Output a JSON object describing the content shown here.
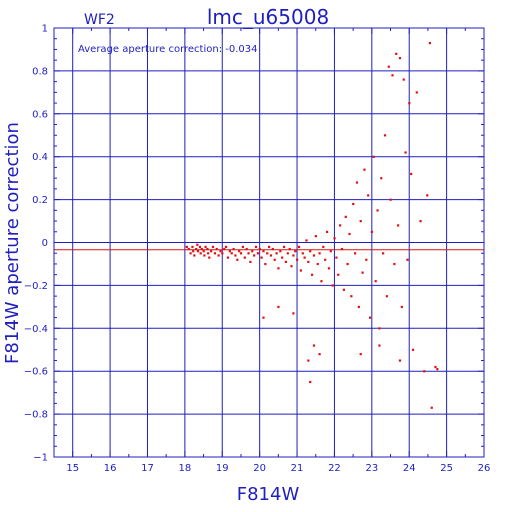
{
  "chart_data": {
    "type": "scatter",
    "title": "lmc_u65008",
    "chip_label": "WF2",
    "annotation": "Average aperture correction: -0.034",
    "xlabel": "F814W",
    "ylabel": "F814W aperture correction",
    "xlim": [
      14.5,
      26
    ],
    "ylim": [
      -1,
      1
    ],
    "xticks": [
      15,
      16,
      17,
      18,
      19,
      20,
      21,
      22,
      23,
      24,
      25,
      26
    ],
    "yticks": [
      -1,
      -0.8,
      -0.6,
      -0.4,
      -0.2,
      0,
      0.2,
      0.4,
      0.6,
      0.8,
      1
    ],
    "ytick_labels": [
      "−1",
      "−0.8",
      "−0.6",
      "−0.4",
      "−0.2",
      "0",
      "0.2",
      "0.4",
      "0.6",
      "0.8",
      "1"
    ],
    "grid": true,
    "average_line_y": -0.034,
    "zero_line_y": 0,
    "point_color": "#e01010",
    "axis_color": "#1f1fbf",
    "points": [
      [
        18.05,
        -0.02
      ],
      [
        18.1,
        -0.03
      ],
      [
        18.15,
        -0.05
      ],
      [
        18.2,
        -0.02
      ],
      [
        18.22,
        -0.04
      ],
      [
        18.25,
        -0.06
      ],
      [
        18.3,
        -0.03
      ],
      [
        18.33,
        -0.01
      ],
      [
        18.35,
        -0.04
      ],
      [
        18.4,
        -0.02
      ],
      [
        18.42,
        -0.05
      ],
      [
        18.45,
        -0.03
      ],
      [
        18.5,
        -0.04
      ],
      [
        18.52,
        -0.06
      ],
      [
        18.55,
        -0.02
      ],
      [
        18.6,
        -0.03
      ],
      [
        18.62,
        -0.05
      ],
      [
        18.65,
        -0.07
      ],
      [
        18.7,
        -0.04
      ],
      [
        18.75,
        -0.02
      ],
      [
        18.8,
        -0.05
      ],
      [
        18.85,
        -0.03
      ],
      [
        18.9,
        -0.06
      ],
      [
        18.95,
        -0.04
      ],
      [
        19.0,
        -0.05
      ],
      [
        19.05,
        -0.03
      ],
      [
        19.1,
        -0.02
      ],
      [
        19.15,
        -0.07
      ],
      [
        19.2,
        -0.04
      ],
      [
        19.25,
        -0.05
      ],
      [
        19.3,
        -0.03
      ],
      [
        19.35,
        -0.06
      ],
      [
        19.4,
        -0.08
      ],
      [
        19.45,
        -0.04
      ],
      [
        19.5,
        -0.05
      ],
      [
        19.55,
        -0.02
      ],
      [
        19.6,
        -0.07
      ],
      [
        19.65,
        -0.03
      ],
      [
        19.7,
        -0.05
      ],
      [
        19.75,
        -0.09
      ],
      [
        19.8,
        -0.04
      ],
      [
        19.85,
        -0.06
      ],
      [
        19.9,
        -0.02
      ],
      [
        19.95,
        -0.05
      ],
      [
        20.0,
        -0.03
      ],
      [
        20.05,
        -0.07
      ],
      [
        20.1,
        -0.04
      ],
      [
        20.15,
        -0.1
      ],
      [
        20.2,
        -0.05
      ],
      [
        20.25,
        -0.02
      ],
      [
        20.3,
        -0.06
      ],
      [
        20.35,
        -0.03
      ],
      [
        20.4,
        -0.08
      ],
      [
        20.45,
        -0.05
      ],
      [
        20.5,
        -0.12
      ],
      [
        20.55,
        -0.04
      ],
      [
        20.6,
        -0.07
      ],
      [
        20.65,
        -0.02
      ],
      [
        20.7,
        -0.09
      ],
      [
        20.75,
        -0.05
      ],
      [
        20.8,
        -0.03
      ],
      [
        20.85,
        -0.11
      ],
      [
        20.9,
        -0.06
      ],
      [
        20.95,
        -0.04
      ],
      [
        21.0,
        -0.08
      ],
      [
        21.05,
        -0.02
      ],
      [
        21.1,
        -0.13
      ],
      [
        21.15,
        -0.05
      ],
      [
        21.2,
        -0.07
      ],
      [
        21.25,
        0.01
      ],
      [
        21.3,
        -0.09
      ],
      [
        21.35,
        -0.04
      ],
      [
        21.4,
        -0.15
      ],
      [
        21.45,
        -0.06
      ],
      [
        21.5,
        0.03
      ],
      [
        21.55,
        -0.1
      ],
      [
        21.6,
        -0.05
      ],
      [
        21.65,
        -0.18
      ],
      [
        21.7,
        -0.02
      ],
      [
        21.75,
        -0.08
      ],
      [
        21.8,
        0.05
      ],
      [
        21.85,
        -0.12
      ],
      [
        21.9,
        -0.04
      ],
      [
        21.95,
        -0.2
      ],
      [
        22.0,
        0.02
      ],
      [
        22.05,
        -0.07
      ],
      [
        22.1,
        -0.15
      ],
      [
        22.15,
        0.08
      ],
      [
        22.2,
        -0.03
      ],
      [
        22.25,
        -0.22
      ],
      [
        22.3,
        0.12
      ],
      [
        22.35,
        -0.1
      ],
      [
        22.4,
        0.04
      ],
      [
        22.45,
        -0.25
      ],
      [
        22.5,
        0.18
      ],
      [
        22.55,
        -0.05
      ],
      [
        22.6,
        0.28
      ],
      [
        22.65,
        -0.3
      ],
      [
        22.7,
        0.1
      ],
      [
        22.75,
        -0.14
      ],
      [
        22.8,
        0.34
      ],
      [
        22.85,
        -0.08
      ],
      [
        22.9,
        0.22
      ],
      [
        22.95,
        -0.35
      ],
      [
        23.0,
        0.05
      ],
      [
        23.05,
        0.4
      ],
      [
        23.1,
        -0.18
      ],
      [
        23.15,
        0.15
      ],
      [
        23.2,
        -0.4
      ],
      [
        23.25,
        0.3
      ],
      [
        23.3,
        -0.05
      ],
      [
        23.35,
        0.5
      ],
      [
        23.4,
        -0.25
      ],
      [
        23.45,
        0.82
      ],
      [
        23.5,
        0.2
      ],
      [
        23.55,
        0.78
      ],
      [
        23.6,
        -0.1
      ],
      [
        23.65,
        0.88
      ],
      [
        23.7,
        0.08
      ],
      [
        23.75,
        0.86
      ],
      [
        23.8,
        -0.3
      ],
      [
        23.85,
        0.76
      ],
      [
        23.9,
        0.42
      ],
      [
        23.95,
        -0.08
      ],
      [
        24.0,
        0.65
      ],
      [
        24.05,
        0.32
      ],
      [
        24.1,
        -0.5
      ],
      [
        24.2,
        0.7
      ],
      [
        24.3,
        0.1
      ],
      [
        24.4,
        -0.6
      ],
      [
        24.48,
        0.22
      ],
      [
        24.55,
        0.93
      ],
      [
        24.6,
        -0.77
      ],
      [
        24.7,
        -0.58
      ],
      [
        24.75,
        -0.59
      ],
      [
        21.3,
        -0.55
      ],
      [
        21.45,
        -0.48
      ],
      [
        21.6,
        -0.52
      ],
      [
        21.35,
        -0.65
      ],
      [
        20.1,
        -0.35
      ],
      [
        20.5,
        -0.3
      ],
      [
        20.9,
        -0.33
      ],
      [
        22.7,
        -0.52
      ],
      [
        23.2,
        -0.48
      ],
      [
        23.75,
        -0.55
      ]
    ]
  }
}
